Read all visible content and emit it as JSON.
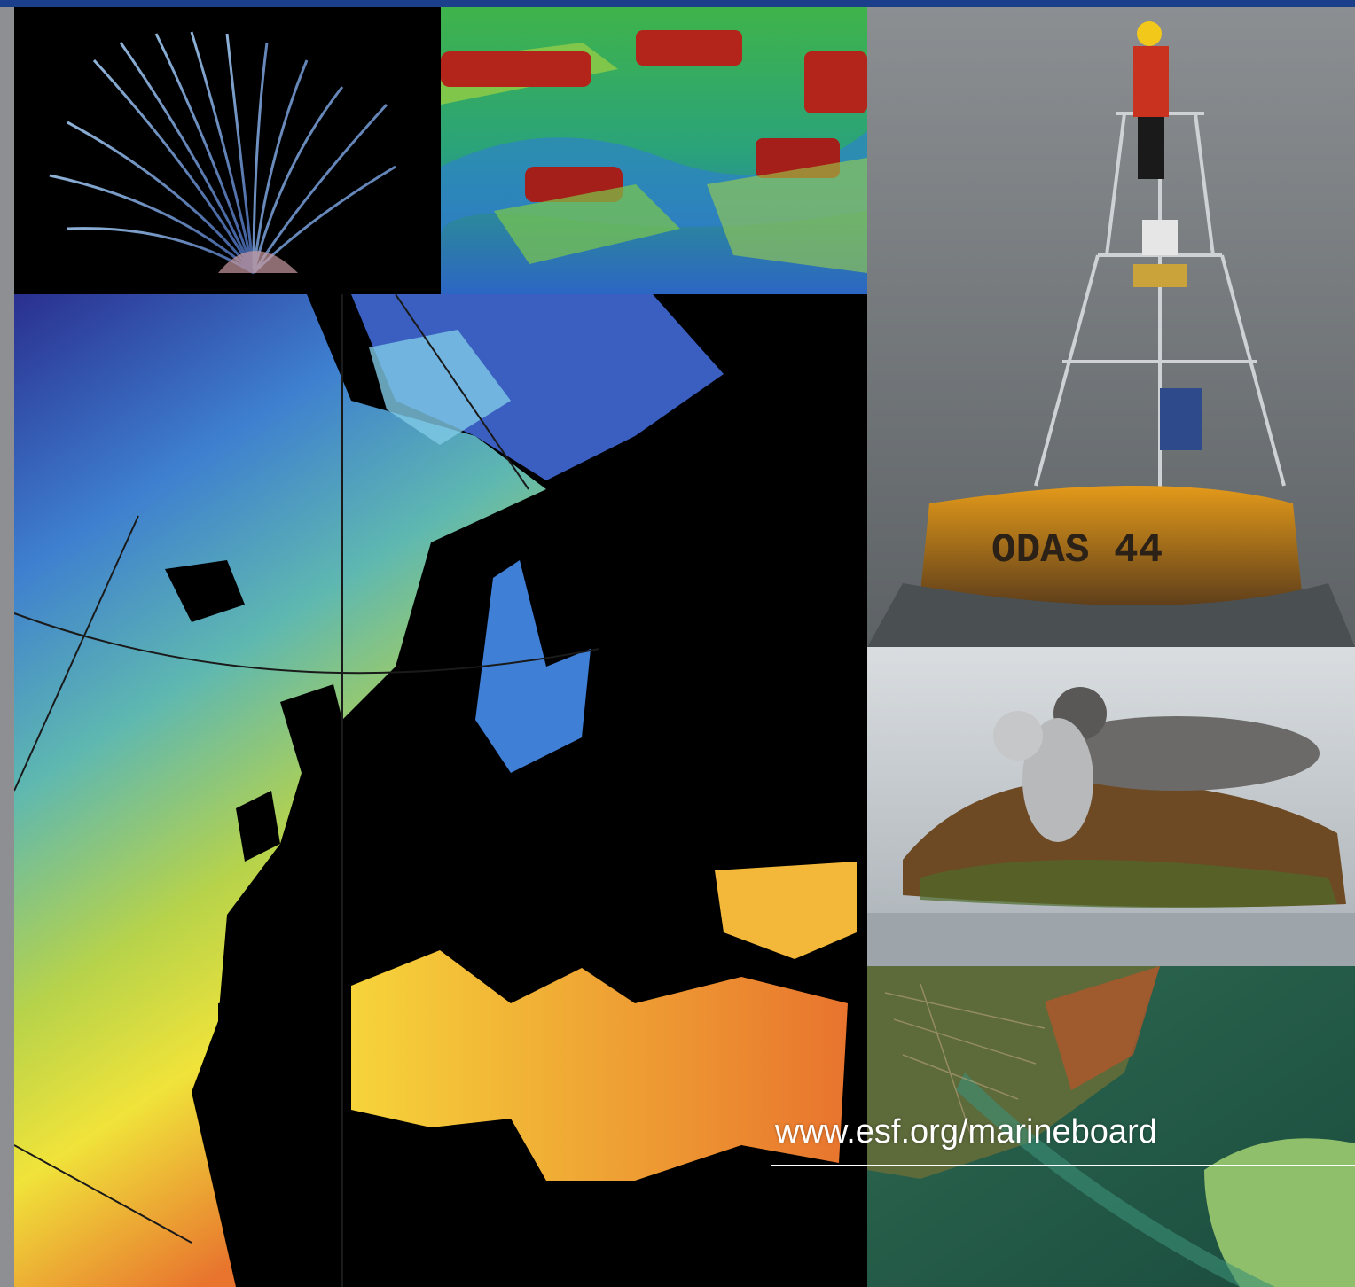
{
  "footer": {
    "url": "www.esf.org/marineboard"
  },
  "buoy": {
    "hull_label": "ODAS 44"
  },
  "colors": {
    "top_band": "#1b3f8a",
    "frame": "#8d8f92",
    "map_cold": "#2a2f8f",
    "map_warm": "#f0e33a",
    "map_hot": "#e8742e"
  },
  "icons": {
    "worm": "tube-worm-photo",
    "bathymetry": "seafloor-bathymetry-render",
    "map": "sea-surface-temperature-map",
    "buoy": "ocean-buoy-photo",
    "seals": "seals-on-rock-photo",
    "aerial": "coastal-aerial-photo"
  }
}
